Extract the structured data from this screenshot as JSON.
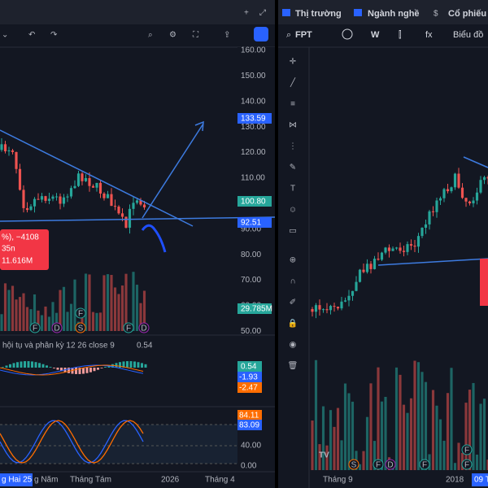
{
  "top_tabs": [
    "Thị trường",
    "Ngành nghề",
    "Cổ phiếu"
  ],
  "right_toolbar": {
    "symbol": "FPT",
    "interval": "W",
    "chart": "Biểu đồ"
  },
  "left_chart": {
    "price_ticks": [
      "160.00",
      "150.00",
      "140.00",
      "130.00",
      "120.00",
      "110.00",
      "100.00",
      "90.00",
      "80.00",
      "70.00",
      "60.00",
      "50.00"
    ],
    "badges": [
      "133.59",
      "100.80",
      "92.51",
      "29.785M"
    ],
    "tooltip": [
      "%), −4108",
      "35n",
      "11.616M"
    ],
    "macd_title": "hội tụ và phân kỳ 12 26 close 9",
    "macd_value": "0.54",
    "macd_badges": [
      "0.54",
      "-1.93",
      "-2.47"
    ],
    "stoch_badges": [
      "84.11",
      "83.09"
    ],
    "stoch_ticks": [
      "40.00",
      "0.00"
    ],
    "time_labels": [
      "g Hai 25",
      "g Năm",
      "Tháng Tám",
      "2026",
      "Tháng 4"
    ],
    "events": [
      "F",
      "D",
      "S",
      "F",
      "F",
      "D"
    ]
  },
  "right_chart": {
    "time_labels": [
      "Tháng 9",
      "2018",
      "09 T"
    ],
    "events": [
      "S",
      "F",
      "D",
      "F",
      "F",
      "F"
    ]
  }
}
